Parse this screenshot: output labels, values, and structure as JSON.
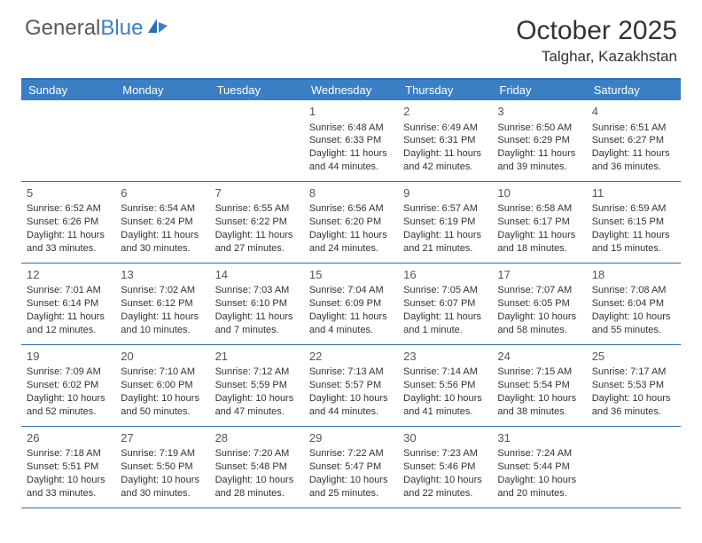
{
  "logo": {
    "text1": "General",
    "text2": "Blue"
  },
  "title": "October 2025",
  "location": "Talghar, Kazakhstan",
  "colors": {
    "header_bg": "#3a7fc4",
    "header_text": "#ffffff",
    "border": "#2a6fb5",
    "text": "#333333",
    "logo_gray": "#5a5a5a",
    "logo_blue": "#3a7fc4",
    "background": "#ffffff"
  },
  "typography": {
    "month_title_size": 30,
    "location_size": 17,
    "day_header_size": 13,
    "daynum_size": 13,
    "detail_size": 11
  },
  "day_names": [
    "Sunday",
    "Monday",
    "Tuesday",
    "Wednesday",
    "Thursday",
    "Friday",
    "Saturday"
  ],
  "weeks": [
    [
      null,
      null,
      null,
      {
        "n": "1",
        "sr": "Sunrise: 6:48 AM",
        "ss": "Sunset: 6:33 PM",
        "dl1": "Daylight: 11 hours",
        "dl2": "and 44 minutes."
      },
      {
        "n": "2",
        "sr": "Sunrise: 6:49 AM",
        "ss": "Sunset: 6:31 PM",
        "dl1": "Daylight: 11 hours",
        "dl2": "and 42 minutes."
      },
      {
        "n": "3",
        "sr": "Sunrise: 6:50 AM",
        "ss": "Sunset: 6:29 PM",
        "dl1": "Daylight: 11 hours",
        "dl2": "and 39 minutes."
      },
      {
        "n": "4",
        "sr": "Sunrise: 6:51 AM",
        "ss": "Sunset: 6:27 PM",
        "dl1": "Daylight: 11 hours",
        "dl2": "and 36 minutes."
      }
    ],
    [
      {
        "n": "5",
        "sr": "Sunrise: 6:52 AM",
        "ss": "Sunset: 6:26 PM",
        "dl1": "Daylight: 11 hours",
        "dl2": "and 33 minutes."
      },
      {
        "n": "6",
        "sr": "Sunrise: 6:54 AM",
        "ss": "Sunset: 6:24 PM",
        "dl1": "Daylight: 11 hours",
        "dl2": "and 30 minutes."
      },
      {
        "n": "7",
        "sr": "Sunrise: 6:55 AM",
        "ss": "Sunset: 6:22 PM",
        "dl1": "Daylight: 11 hours",
        "dl2": "and 27 minutes."
      },
      {
        "n": "8",
        "sr": "Sunrise: 6:56 AM",
        "ss": "Sunset: 6:20 PM",
        "dl1": "Daylight: 11 hours",
        "dl2": "and 24 minutes."
      },
      {
        "n": "9",
        "sr": "Sunrise: 6:57 AM",
        "ss": "Sunset: 6:19 PM",
        "dl1": "Daylight: 11 hours",
        "dl2": "and 21 minutes."
      },
      {
        "n": "10",
        "sr": "Sunrise: 6:58 AM",
        "ss": "Sunset: 6:17 PM",
        "dl1": "Daylight: 11 hours",
        "dl2": "and 18 minutes."
      },
      {
        "n": "11",
        "sr": "Sunrise: 6:59 AM",
        "ss": "Sunset: 6:15 PM",
        "dl1": "Daylight: 11 hours",
        "dl2": "and 15 minutes."
      }
    ],
    [
      {
        "n": "12",
        "sr": "Sunrise: 7:01 AM",
        "ss": "Sunset: 6:14 PM",
        "dl1": "Daylight: 11 hours",
        "dl2": "and 12 minutes."
      },
      {
        "n": "13",
        "sr": "Sunrise: 7:02 AM",
        "ss": "Sunset: 6:12 PM",
        "dl1": "Daylight: 11 hours",
        "dl2": "and 10 minutes."
      },
      {
        "n": "14",
        "sr": "Sunrise: 7:03 AM",
        "ss": "Sunset: 6:10 PM",
        "dl1": "Daylight: 11 hours",
        "dl2": "and 7 minutes."
      },
      {
        "n": "15",
        "sr": "Sunrise: 7:04 AM",
        "ss": "Sunset: 6:09 PM",
        "dl1": "Daylight: 11 hours",
        "dl2": "and 4 minutes."
      },
      {
        "n": "16",
        "sr": "Sunrise: 7:05 AM",
        "ss": "Sunset: 6:07 PM",
        "dl1": "Daylight: 11 hours",
        "dl2": "and 1 minute."
      },
      {
        "n": "17",
        "sr": "Sunrise: 7:07 AM",
        "ss": "Sunset: 6:05 PM",
        "dl1": "Daylight: 10 hours",
        "dl2": "and 58 minutes."
      },
      {
        "n": "18",
        "sr": "Sunrise: 7:08 AM",
        "ss": "Sunset: 6:04 PM",
        "dl1": "Daylight: 10 hours",
        "dl2": "and 55 minutes."
      }
    ],
    [
      {
        "n": "19",
        "sr": "Sunrise: 7:09 AM",
        "ss": "Sunset: 6:02 PM",
        "dl1": "Daylight: 10 hours",
        "dl2": "and 52 minutes."
      },
      {
        "n": "20",
        "sr": "Sunrise: 7:10 AM",
        "ss": "Sunset: 6:00 PM",
        "dl1": "Daylight: 10 hours",
        "dl2": "and 50 minutes."
      },
      {
        "n": "21",
        "sr": "Sunrise: 7:12 AM",
        "ss": "Sunset: 5:59 PM",
        "dl1": "Daylight: 10 hours",
        "dl2": "and 47 minutes."
      },
      {
        "n": "22",
        "sr": "Sunrise: 7:13 AM",
        "ss": "Sunset: 5:57 PM",
        "dl1": "Daylight: 10 hours",
        "dl2": "and 44 minutes."
      },
      {
        "n": "23",
        "sr": "Sunrise: 7:14 AM",
        "ss": "Sunset: 5:56 PM",
        "dl1": "Daylight: 10 hours",
        "dl2": "and 41 minutes."
      },
      {
        "n": "24",
        "sr": "Sunrise: 7:15 AM",
        "ss": "Sunset: 5:54 PM",
        "dl1": "Daylight: 10 hours",
        "dl2": "and 38 minutes."
      },
      {
        "n": "25",
        "sr": "Sunrise: 7:17 AM",
        "ss": "Sunset: 5:53 PM",
        "dl1": "Daylight: 10 hours",
        "dl2": "and 36 minutes."
      }
    ],
    [
      {
        "n": "26",
        "sr": "Sunrise: 7:18 AM",
        "ss": "Sunset: 5:51 PM",
        "dl1": "Daylight: 10 hours",
        "dl2": "and 33 minutes."
      },
      {
        "n": "27",
        "sr": "Sunrise: 7:19 AM",
        "ss": "Sunset: 5:50 PM",
        "dl1": "Daylight: 10 hours",
        "dl2": "and 30 minutes."
      },
      {
        "n": "28",
        "sr": "Sunrise: 7:20 AM",
        "ss": "Sunset: 5:48 PM",
        "dl1": "Daylight: 10 hours",
        "dl2": "and 28 minutes."
      },
      {
        "n": "29",
        "sr": "Sunrise: 7:22 AM",
        "ss": "Sunset: 5:47 PM",
        "dl1": "Daylight: 10 hours",
        "dl2": "and 25 minutes."
      },
      {
        "n": "30",
        "sr": "Sunrise: 7:23 AM",
        "ss": "Sunset: 5:46 PM",
        "dl1": "Daylight: 10 hours",
        "dl2": "and 22 minutes."
      },
      {
        "n": "31",
        "sr": "Sunrise: 7:24 AM",
        "ss": "Sunset: 5:44 PM",
        "dl1": "Daylight: 10 hours",
        "dl2": "and 20 minutes."
      },
      null
    ]
  ]
}
